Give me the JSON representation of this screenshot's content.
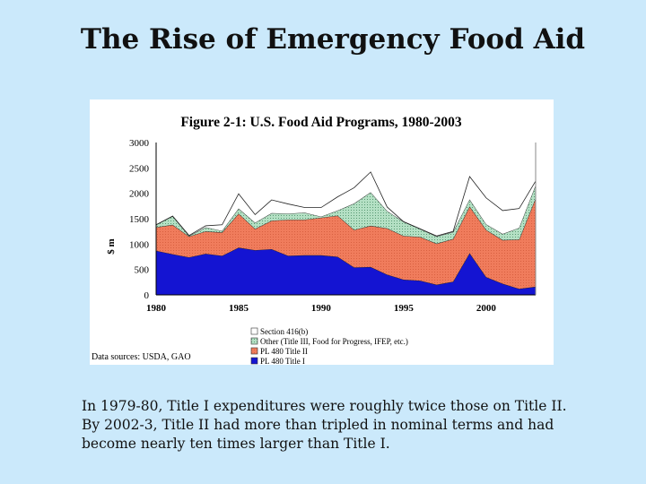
{
  "slide": {
    "title": "The Rise of Emergency Food Aid",
    "body_lines": [
      "In 1979-80, Title I expenditures were roughly twice those on Title II.",
      "By 2002-3, Title II had more than tripled in nominal terms and had",
      "become nearly ten times larger than Title I."
    ]
  },
  "chart_data": {
    "type": "area",
    "stacked": true,
    "title": "Figure 2-1: U.S. Food Aid Programs, 1980-2003",
    "ylabel": "$ m",
    "xlabel": "",
    "source": "Data sources: USDA, GAO",
    "xlim": [
      1980,
      2003
    ],
    "ylim": [
      0,
      3000
    ],
    "xticks": [
      1980,
      1985,
      1990,
      1995,
      2000
    ],
    "yticks": [
      0,
      500,
      1000,
      1500,
      2000,
      2500,
      3000
    ],
    "legend_position": "bottom",
    "x": [
      1980,
      1981,
      1982,
      1983,
      1984,
      1985,
      1986,
      1987,
      1988,
      1989,
      1990,
      1991,
      1992,
      1993,
      1994,
      1995,
      1996,
      1997,
      1998,
      1999,
      2000,
      2001,
      2002,
      2003
    ],
    "series": [
      {
        "name": "PL 480 Title I",
        "color": "#1414d2",
        "values": [
          870,
          800,
          740,
          810,
          770,
          930,
          880,
          900,
          770,
          780,
          780,
          750,
          540,
          550,
          400,
          300,
          280,
          200,
          260,
          820,
          350,
          220,
          120,
          160
        ]
      },
      {
        "name": "PL 480 Title II",
        "color": "#f07c5c",
        "values": [
          460,
          580,
          410,
          440,
          460,
          670,
          420,
          560,
          710,
          700,
          740,
          810,
          740,
          810,
          910,
          860,
          860,
          810,
          840,
          920,
          930,
          860,
          970,
          1740
        ]
      },
      {
        "name": "Other (Title III, Food for Progress, IFEP, etc.)",
        "color": "#a6d8b6",
        "values": [
          50,
          170,
          10,
          80,
          30,
          100,
          120,
          150,
          120,
          140,
          20,
          100,
          520,
          660,
          340,
          280,
          160,
          140,
          140,
          140,
          110,
          120,
          230,
          260
        ]
      },
      {
        "name": "Section 416(b)",
        "color": "#ffffff",
        "values": [
          0,
          0,
          10,
          30,
          120,
          290,
          160,
          260,
          190,
          100,
          180,
          270,
          310,
          400,
          80,
          0,
          0,
          10,
          10,
          450,
          520,
          460,
          380,
          80
        ]
      }
    ]
  }
}
